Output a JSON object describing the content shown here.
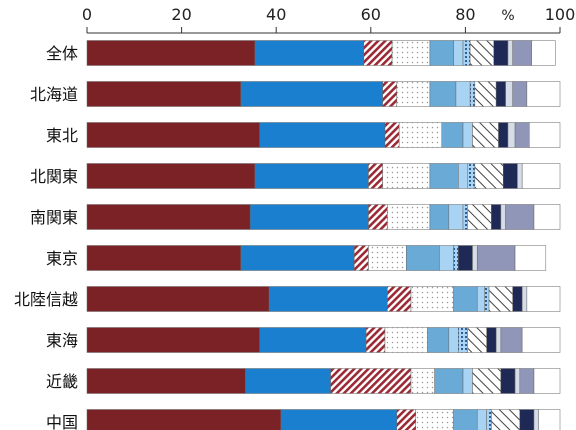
{
  "chart_data": {
    "type": "bar",
    "orientation": "horizontal",
    "stacked": true,
    "unit": "%",
    "xlim": [
      0,
      100
    ],
    "xticks": [
      "0",
      "20",
      "40",
      "60",
      "80",
      "100"
    ],
    "categories": [
      "全体",
      "北海道",
      "東北",
      "北関東",
      "南関東",
      "東京",
      "北陸信越",
      "東海",
      "近畿",
      "中国"
    ],
    "series": [
      {
        "color": "#7b2226",
        "fill": "solid",
        "values": [
          35.5,
          32.5,
          36.5,
          35.5,
          34.5,
          32.5,
          38.5,
          36.5,
          33.5,
          41.0
        ]
      },
      {
        "color": "#1a7fcf",
        "fill": "solid",
        "values": [
          23.0,
          30.0,
          26.5,
          24.0,
          25.0,
          24.0,
          25.0,
          22.5,
          18.0,
          24.5
        ]
      },
      {
        "color": "#9a2a35",
        "fill": "diagonal",
        "values": [
          6.0,
          3.0,
          3.0,
          3.0,
          4.0,
          3.0,
          5.0,
          4.0,
          17.0,
          4.0
        ]
      },
      {
        "color": "#bbbbbb",
        "fill": "dots",
        "values": [
          8.0,
          7.0,
          9.0,
          10.0,
          9.0,
          8.0,
          9.0,
          9.0,
          5.0,
          8.0
        ]
      },
      {
        "color": "#6aaad6",
        "fill": "solid",
        "values": [
          5.0,
          5.5,
          4.5,
          6.0,
          4.0,
          7.0,
          5.0,
          4.5,
          6.0,
          5.0
        ]
      },
      {
        "color": "#a9d3f2",
        "fill": "solid",
        "values": [
          2.0,
          3.0,
          2.0,
          2.0,
          3.0,
          3.0,
          1.5,
          2.0,
          2.0,
          2.0
        ]
      },
      {
        "color": "#2f5f9a",
        "fill": "dashed",
        "values": [
          1.5,
          1.0,
          0.0,
          1.5,
          1.0,
          1.0,
          1.0,
          2.0,
          0.0,
          1.0
        ]
      },
      {
        "color": "#444444",
        "fill": "hatch",
        "values": [
          5.0,
          4.5,
          5.5,
          6.0,
          5.0,
          0.0,
          5.0,
          4.0,
          6.0,
          6.0
        ]
      },
      {
        "color": "#1e2a55",
        "fill": "solid",
        "values": [
          3.0,
          2.0,
          2.0,
          3.0,
          2.0,
          3.0,
          2.0,
          2.0,
          3.0,
          3.0
        ]
      },
      {
        "color": "#d6dde8",
        "fill": "solid",
        "values": [
          1.0,
          1.5,
          1.5,
          1.0,
          1.0,
          1.0,
          1.0,
          1.0,
          1.0,
          1.0
        ]
      },
      {
        "color": "#8f96b7",
        "fill": "solid",
        "values": [
          4.0,
          3.0,
          3.0,
          0.0,
          6.0,
          8.0,
          0.0,
          4.5,
          3.0,
          0.0
        ]
      },
      {
        "color": "#ffffff",
        "fill": "solid",
        "values": [
          5.0,
          7.0,
          6.5,
          8.0,
          5.5,
          6.5,
          7.0,
          8.0,
          5.5,
          4.5
        ]
      }
    ]
  }
}
